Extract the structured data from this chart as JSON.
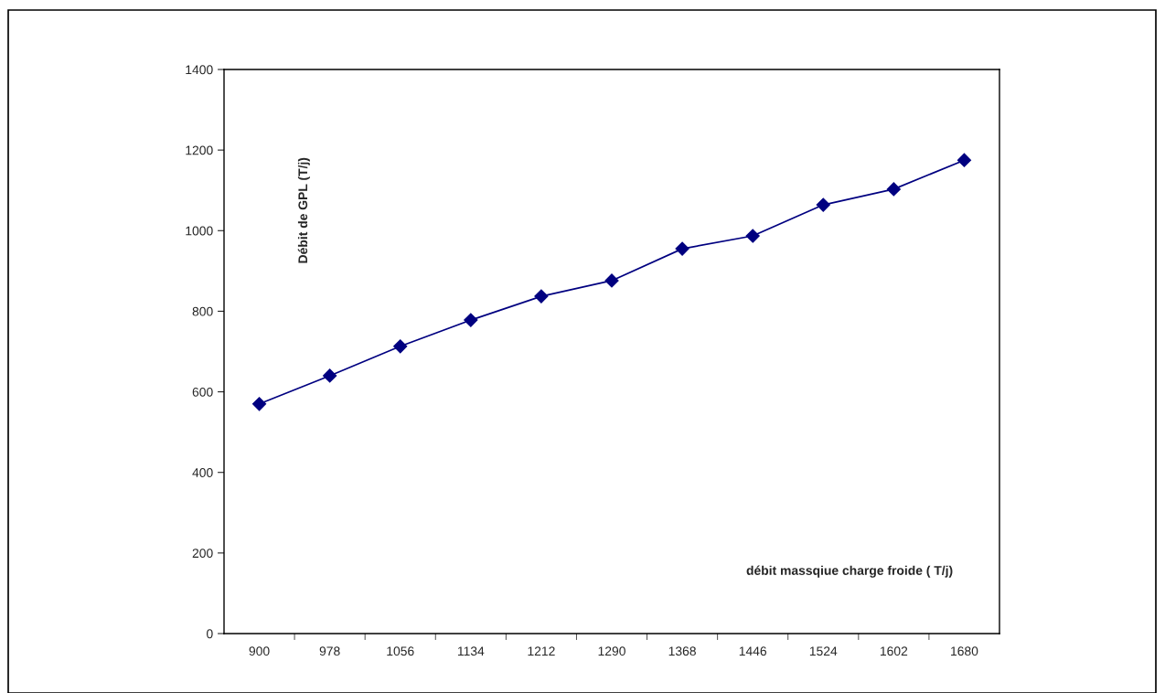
{
  "chart_data": {
    "type": "line",
    "xlabel": "débit massqiue charge froide ( T/j)",
    "ylabel": "Débit de GPL (T/j)",
    "categories": [
      "900",
      "978",
      "1056",
      "1134",
      "1212",
      "1290",
      "1368",
      "1446",
      "1524",
      "1602",
      "1680"
    ],
    "series": [
      {
        "color": "#000080",
        "values": [
          570,
          640,
          713,
          778,
          837,
          876,
          955,
          987,
          1064,
          1103,
          1175
        ]
      }
    ],
    "ylim": [
      0,
      1400
    ],
    "yticks": [
      0,
      200,
      400,
      600,
      800,
      1000,
      1200,
      1400
    ],
    "marker": "diamond",
    "line_style": "solid",
    "grid": false,
    "legend": false
  }
}
